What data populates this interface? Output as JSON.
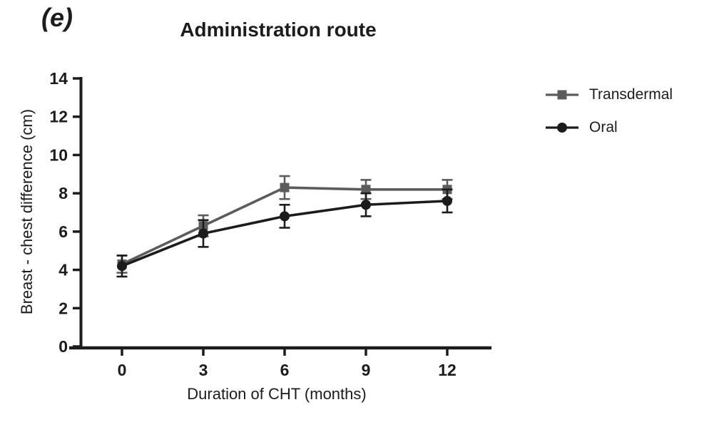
{
  "figure": {
    "panel_label": "(e)",
    "background_color": "#ffffff",
    "text_color": "#1c1c1c"
  },
  "chart_data": {
    "type": "line",
    "title": "Administration route",
    "xlabel": "Duration of CHT (months)",
    "ylabel": "Breast - chest difference (cm)",
    "x": [
      0,
      3,
      6,
      9,
      12
    ],
    "xticks": [
      0,
      3,
      6,
      9,
      12
    ],
    "yticks": [
      0,
      2,
      4,
      6,
      8,
      10,
      12,
      14
    ],
    "xlim": [
      -2,
      13.6
    ],
    "ylim": [
      0,
      14
    ],
    "grid": false,
    "error_bars": true,
    "legend_position": "right",
    "series": [
      {
        "name": "Transdermal",
        "marker": "square",
        "color": "#5c5c5c",
        "values": [
          4.3,
          6.3,
          8.3,
          8.2,
          8.2
        ],
        "errors": [
          0.45,
          0.55,
          0.6,
          0.5,
          0.5
        ]
      },
      {
        "name": "Oral",
        "marker": "circle",
        "color": "#1c1c1c",
        "values": [
          4.2,
          5.9,
          6.8,
          7.4,
          7.6
        ],
        "errors": [
          0.55,
          0.7,
          0.6,
          0.6,
          0.6
        ]
      }
    ]
  }
}
